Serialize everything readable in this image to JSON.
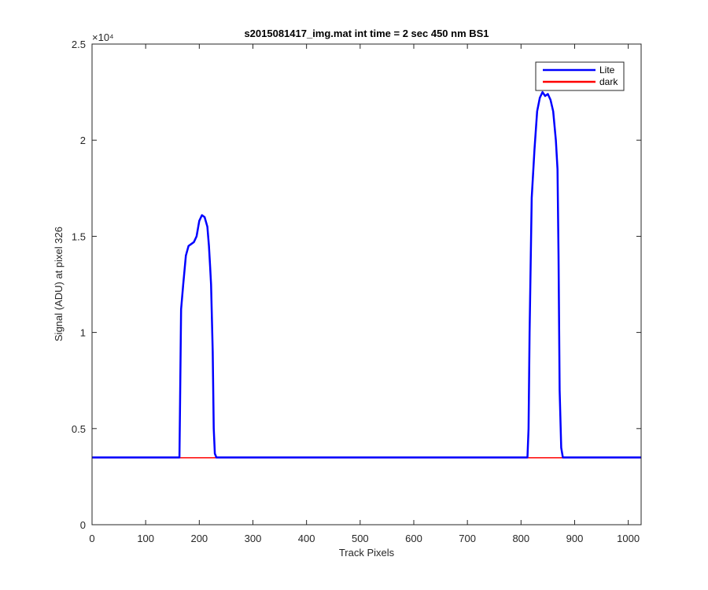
{
  "chart_data": {
    "type": "line",
    "title": "s2015081417_img.mat int time = 2 sec  450 nm BS1",
    "xlabel": "Track Pixels",
    "ylabel": "Signal (ADU) at pixel 326",
    "y_exponent_label": "×10⁴",
    "xlim": [
      0,
      1024
    ],
    "ylim": [
      0,
      25000
    ],
    "x_ticks": [
      0,
      100,
      200,
      300,
      400,
      500,
      600,
      700,
      800,
      900,
      1000
    ],
    "x_tick_labels": [
      "0",
      "100",
      "200",
      "300",
      "400",
      "500",
      "600",
      "700",
      "800",
      "900",
      "1000"
    ],
    "y_ticks": [
      0,
      5000,
      10000,
      15000,
      20000,
      25000
    ],
    "y_tick_labels": [
      "0",
      "0.5",
      "1",
      "1.5",
      "2",
      "2.5"
    ],
    "grid": false,
    "legend_position": "top-right",
    "series": [
      {
        "name": "Lite",
        "color": "#0000ff",
        "x": [
          0,
          163,
          164,
          166,
          170,
          175,
          180,
          185,
          190,
          195,
          200,
          205,
          210,
          215,
          218,
          220,
          222,
          225,
          227,
          229,
          232,
          400,
          600,
          812,
          814,
          816,
          820,
          825,
          830,
          835,
          840,
          845,
          850,
          855,
          860,
          865,
          868,
          870,
          872,
          875,
          878,
          1024
        ],
        "y": [
          3500,
          3500,
          6000,
          11200,
          12500,
          14000,
          14500,
          14600,
          14700,
          15000,
          15800,
          16100,
          16000,
          15500,
          14500,
          13500,
          12500,
          9000,
          5000,
          3700,
          3500,
          3500,
          3500,
          3500,
          5000,
          10000,
          17000,
          19500,
          21500,
          22200,
          22500,
          22300,
          22400,
          22100,
          21500,
          20000,
          18500,
          14000,
          7000,
          4000,
          3500,
          3500
        ]
      },
      {
        "name": "dark",
        "color": "#ff0000",
        "x": [
          0,
          100,
          200,
          300,
          400,
          500,
          600,
          700,
          800,
          900,
          1000,
          1024
        ],
        "y": [
          3480,
          3480,
          3480,
          3480,
          3480,
          3480,
          3480,
          3480,
          3480,
          3480,
          3480,
          3480
        ]
      }
    ]
  }
}
